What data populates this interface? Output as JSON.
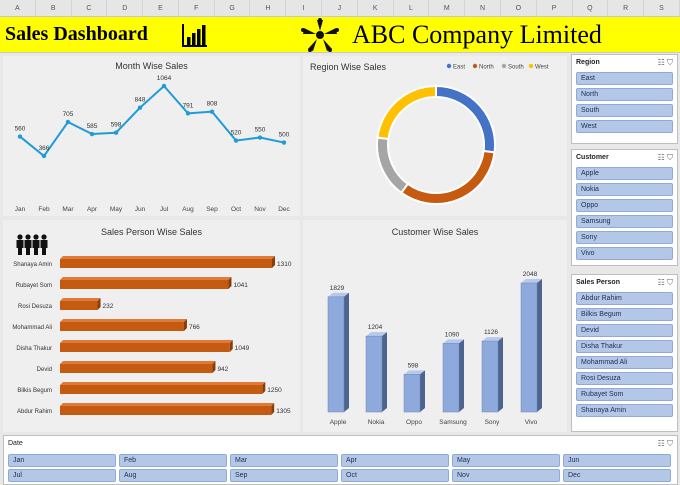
{
  "columns": [
    "A",
    "B",
    "C",
    "D",
    "E",
    "F",
    "G",
    "H",
    "I",
    "J",
    "K",
    "L",
    "M",
    "N",
    "O",
    "P",
    "Q",
    "R",
    "S"
  ],
  "banner": {
    "title": "Sales Dashboard",
    "company": "ABC Company Limited"
  },
  "month_chart": {
    "title": "Month Wise Sales",
    "chart_data": {
      "type": "line",
      "categories": [
        "Jan",
        "Feb",
        "Mar",
        "Apr",
        "May",
        "Jun",
        "Jul",
        "Aug",
        "Sep",
        "Oct",
        "Nov",
        "Dec"
      ],
      "values": [
        560,
        366,
        705,
        585,
        598,
        848,
        1064,
        791,
        808,
        520,
        550,
        500
      ],
      "color": "#1f9bd7"
    }
  },
  "region_chart": {
    "title": "Region Wise Sales",
    "chart_data": {
      "type": "pie",
      "categories": [
        "East",
        "North",
        "South",
        "West"
      ],
      "values": [
        27,
        33,
        17,
        23
      ],
      "colors": [
        "#4472c4",
        "#c55a11",
        "#a5a5a5",
        "#ffc000"
      ]
    }
  },
  "salesperson_chart": {
    "title": "Sales Person Wise Sales",
    "chart_data": {
      "type": "bar",
      "categories": [
        "Shanaya Amin",
        "Rubayet Som",
        "Rosi Desuza",
        "Mohammad Ali",
        "Disha Thakur",
        "Devid",
        "Bilkis Begum",
        "Abdur Rahim"
      ],
      "values": [
        1310,
        1041,
        232,
        766,
        1049,
        942,
        1250,
        1305
      ],
      "color": "#c55a11"
    }
  },
  "customer_chart": {
    "title": "Customer Wise Sales",
    "chart_data": {
      "type": "bar",
      "categories": [
        "Apple",
        "Nokia",
        "Oppo",
        "Samsung",
        "Sony",
        "Vivo"
      ],
      "values": [
        1829,
        1204,
        598,
        1090,
        1126,
        2048
      ],
      "color": "#8ea9db"
    }
  },
  "slicers": {
    "region": {
      "header": "Region",
      "items": [
        "East",
        "North",
        "South",
        "West"
      ]
    },
    "customer": {
      "header": "Customer",
      "items": [
        "Apple",
        "Nokia",
        "Oppo",
        "Samsung",
        "Sony",
        "Vivo"
      ]
    },
    "salesperson": {
      "header": "Sales Person",
      "items": [
        "Abdur Rahim",
        "Bilkis Begum",
        "Devid",
        "Disha Thakur",
        "Mohammad Ali",
        "Rosi Desuza",
        "Rubayet Som",
        "Shanaya Amin"
      ]
    },
    "date": {
      "header": "Date",
      "items": [
        "Jan",
        "Feb",
        "Mar",
        "Apr",
        "May",
        "Jun",
        "Jul",
        "Aug",
        "Sep",
        "Oct",
        "Nov",
        "Dec"
      ]
    }
  },
  "icons": {
    "filter_clear": "filter-clear-icon",
    "multi_select": "multi-select-icon",
    "people": "people-icon",
    "chart": "bar-chart-icon",
    "logo": "company-logo-icon"
  }
}
